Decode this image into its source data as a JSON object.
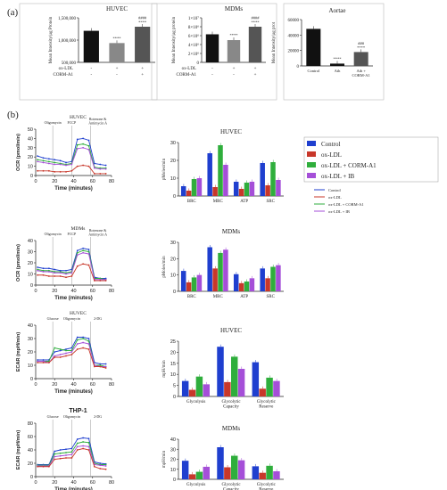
{
  "panel_labels": {
    "a": "(a)",
    "b": "(b)"
  },
  "legend_main": {
    "items": [
      {
        "label": "Control",
        "color": "#1f3fcf"
      },
      {
        "label": "ox-LDL",
        "color": "#c8372a"
      },
      {
        "label": "ox-LDL + CORM-A1",
        "color": "#2fae3c"
      },
      {
        "label": "ox-LDL + IB",
        "color": "#a54fd8"
      }
    ]
  },
  "legend_small": {
    "items": [
      {
        "label": "Control",
        "color": "#1f3fcf"
      },
      {
        "label": "ox-LDL",
        "color": "#c8372a"
      },
      {
        "label": "ox-LDL + CORM-A1",
        "color": "#2fae3c"
      },
      {
        "label": "ox-LDL + IB",
        "color": "#a54fd8"
      }
    ]
  },
  "chart_data": [
    {
      "id": "a1",
      "type": "bar",
      "title": "HUVEC",
      "ylabel": "Mean Intensity/µg Protein",
      "yticks": [
        "500,000",
        "1,000,000",
        "1,500,000"
      ],
      "ylim": [
        300000,
        1500000
      ],
      "values": [
        1150000,
        820000,
        1260000
      ],
      "colors": [
        "#111111",
        "#888888",
        "#555555"
      ],
      "sig": [
        "",
        "****",
        "####\n****"
      ],
      "rows": [
        {
          "label": "ox-LDL",
          "marks": [
            "-",
            "+",
            "+"
          ]
        },
        {
          "label": "CORM-A1",
          "marks": [
            "-",
            "-",
            "+"
          ]
        }
      ]
    },
    {
      "id": "a2",
      "type": "bar",
      "title": "MDMs",
      "ylabel": "Mean Intensity/µg protein",
      "yticks": [
        "0",
        "2×10⁶",
        "4×10⁶",
        "6×10⁶",
        "8×10⁶",
        "1×10⁷"
      ],
      "ylim": [
        0,
        10000000
      ],
      "values": [
        6300000,
        5000000,
        8000000
      ],
      "colors": [
        "#111111",
        "#888888",
        "#555555"
      ],
      "sig": [
        "",
        "****",
        "####\n****"
      ],
      "rows": [
        {
          "label": "ox-LDL",
          "marks": [
            "-",
            "+",
            "+"
          ]
        },
        {
          "label": "CORM-A1",
          "marks": [
            "-",
            "-",
            "+"
          ]
        }
      ]
    },
    {
      "id": "a3",
      "type": "bar",
      "title": "Aortae",
      "ylabel": "Mean Intensity/µg prot",
      "yticks": [
        "0",
        "20000",
        "40000",
        "60000"
      ],
      "ylim": [
        0,
        60000
      ],
      "categories": [
        "Control",
        "Ath",
        "Ath +\nCORM-A1"
      ],
      "values": [
        48000,
        3000,
        18000
      ],
      "colors": [
        "#111111",
        "#111111",
        "#555555"
      ],
      "sig": [
        "",
        "****",
        "###\n****"
      ]
    },
    {
      "id": "l1",
      "type": "line",
      "title": "HUVEC",
      "xlabel": "Time (minutes)",
      "ylabel": "OCR (pmol/min)",
      "xticks": [
        "0",
        "20",
        "40",
        "60",
        "80"
      ],
      "yticks": [
        "0",
        "10",
        "20",
        "30",
        "40",
        "50"
      ],
      "xlim": [
        0,
        80
      ],
      "ylim": [
        0,
        50
      ],
      "annotations": [
        "Oligomycin",
        "FCCP",
        "Rotenone &\nAntimycin A"
      ],
      "x": [
        2,
        8,
        14,
        20,
        26,
        32,
        38,
        44,
        50,
        56,
        62,
        68,
        74
      ],
      "series": [
        {
          "color": "#1f3fcf",
          "values": [
            21,
            19,
            18,
            17,
            16,
            14,
            15,
            39,
            40,
            38,
            13,
            12,
            11
          ]
        },
        {
          "color": "#2fae3c",
          "values": [
            17,
            16,
            15,
            14,
            13,
            12,
            13,
            33,
            34,
            32,
            9,
            8,
            8
          ]
        },
        {
          "color": "#a54fd8",
          "values": [
            15,
            14,
            13,
            12,
            12,
            11,
            12,
            29,
            30,
            28,
            8,
            7,
            7
          ]
        },
        {
          "color": "#c8372a",
          "values": [
            5,
            5,
            5,
            4,
            4,
            4,
            5,
            10,
            11,
            10,
            2,
            2,
            2
          ]
        }
      ]
    },
    {
      "id": "l2",
      "type": "line",
      "title": "MDMs",
      "xlabel": "Time (minutes)",
      "ylabel": "OCR (pmol/min)",
      "xticks": [
        "0",
        "20",
        "40",
        "60",
        "80"
      ],
      "yticks": [
        "0",
        "10",
        "20",
        "30",
        "40"
      ],
      "xlim": [
        0,
        80
      ],
      "ylim": [
        0,
        40
      ],
      "annotations": [
        "Oligomycin",
        "FCCP",
        "Rotenone &\nAntimycin A"
      ],
      "x": [
        2,
        8,
        14,
        20,
        26,
        32,
        38,
        44,
        50,
        56,
        62,
        68,
        74
      ],
      "series": [
        {
          "color": "#1f3fcf",
          "values": [
            16,
            15,
            15,
            14,
            13,
            13,
            14,
            31,
            33,
            32,
            7,
            6,
            6
          ]
        },
        {
          "color": "#2fae3c",
          "values": [
            14,
            13,
            13,
            12,
            12,
            11,
            12,
            29,
            31,
            30,
            6,
            6,
            5
          ]
        },
        {
          "color": "#a54fd8",
          "values": [
            13,
            12,
            12,
            11,
            11,
            10,
            11,
            27,
            29,
            28,
            5,
            5,
            5
          ]
        },
        {
          "color": "#c8372a",
          "values": [
            9,
            9,
            8,
            8,
            8,
            7,
            8,
            17,
            19,
            18,
            4,
            4,
            4
          ]
        }
      ]
    },
    {
      "id": "l3",
      "type": "line",
      "title": "HUVEC",
      "xlabel": "Time (minutes)",
      "ylabel": "ECAR (mpH/min)",
      "xticks": [
        "0",
        "20",
        "40",
        "60",
        "80"
      ],
      "yticks": [
        "0",
        "10",
        "20",
        "30",
        "40"
      ],
      "xlim": [
        0,
        80
      ],
      "ylim": [
        0,
        40
      ],
      "annotations": [
        "Glucose",
        "Oligomycin",
        "2-DG"
      ],
      "x": [
        2,
        8,
        14,
        20,
        26,
        32,
        38,
        44,
        50,
        56,
        62,
        68,
        74
      ],
      "series": [
        {
          "color": "#1f3fcf",
          "values": [
            14,
            14,
            14,
            20,
            21,
            22,
            23,
            31,
            31,
            30,
            12,
            11,
            11
          ]
        },
        {
          "color": "#2fae3c",
          "values": [
            13,
            13,
            13,
            23,
            22,
            21,
            21,
            29,
            30,
            28,
            10,
            10,
            9
          ]
        },
        {
          "color": "#a54fd8",
          "values": [
            13,
            13,
            12,
            17,
            18,
            19,
            20,
            26,
            27,
            26,
            10,
            9,
            9
          ]
        },
        {
          "color": "#c8372a",
          "values": [
            12,
            12,
            12,
            16,
            16,
            17,
            18,
            22,
            23,
            22,
            9,
            9,
            8
          ]
        }
      ]
    },
    {
      "id": "l4",
      "type": "line",
      "title": "THP-1",
      "xlabel": "Time (minutes)",
      "ylabel": "ECAR (mpH/min)",
      "xticks": [
        "0",
        "20",
        "40",
        "60",
        "80"
      ],
      "yticks": [
        "0",
        "20",
        "40",
        "60",
        "80"
      ],
      "xlim": [
        0,
        80
      ],
      "ylim": [
        0,
        80
      ],
      "annotations": [
        "Glucose",
        "Oligomycin",
        "2-DG"
      ],
      "x": [
        2,
        8,
        14,
        20,
        26,
        32,
        38,
        44,
        50,
        56,
        62,
        68,
        74
      ],
      "series": [
        {
          "color": "#1f3fcf",
          "values": [
            18,
            18,
            18,
            38,
            40,
            41,
            42,
            56,
            58,
            57,
            22,
            20,
            19
          ]
        },
        {
          "color": "#2fae3c",
          "values": [
            17,
            17,
            17,
            34,
            35,
            36,
            37,
            50,
            52,
            51,
            20,
            18,
            18
          ]
        },
        {
          "color": "#a54fd8",
          "values": [
            16,
            16,
            16,
            30,
            31,
            32,
            33,
            45,
            46,
            45,
            18,
            17,
            16
          ]
        },
        {
          "color": "#c8372a",
          "values": [
            15,
            15,
            15,
            26,
            27,
            28,
            28,
            40,
            42,
            40,
            15,
            12,
            11
          ]
        }
      ]
    },
    {
      "id": "g1",
      "type": "bar",
      "title": "HUVEC",
      "ylabel": "pMoles/min",
      "categories": [
        "BRC",
        "MRC",
        "ATP",
        "SRC"
      ],
      "yticks": [
        "0",
        "10",
        "20",
        "30"
      ],
      "ylim": [
        0,
        30
      ],
      "series": [
        {
          "name": "Control",
          "color": "#1f3fcf",
          "values": [
            5.5,
            24,
            8,
            18.5
          ]
        },
        {
          "name": "ox-LDL",
          "color": "#c8372a",
          "values": [
            3,
            5,
            4,
            6
          ]
        },
        {
          "name": "ox-LDL + CORM-A1",
          "color": "#2fae3c",
          "values": [
            9.5,
            28.5,
            7.5,
            19
          ]
        },
        {
          "name": "ox-LDL + IB",
          "color": "#a54fd8",
          "values": [
            10,
            17.5,
            8,
            9
          ]
        }
      ]
    },
    {
      "id": "g2",
      "type": "bar",
      "title": "MDMs",
      "ylabel": "pMoles/min",
      "categories": [
        "BRC",
        "MRC",
        "ATP",
        "SRC"
      ],
      "yticks": [
        "0",
        "10",
        "20",
        "30"
      ],
      "ylim": [
        0,
        30
      ],
      "series": [
        {
          "name": "Control",
          "color": "#1f3fcf",
          "values": [
            12.5,
            27,
            10.5,
            14
          ]
        },
        {
          "name": "ox-LDL",
          "color": "#c8372a",
          "values": [
            5.5,
            14,
            5,
            8
          ]
        },
        {
          "name": "ox-LDL + CORM-A1",
          "color": "#2fae3c",
          "values": [
            8.5,
            23.5,
            6,
            15
          ]
        },
        {
          "name": "ox-LDL + IB",
          "color": "#a54fd8",
          "values": [
            10,
            25.5,
            8,
            16
          ]
        }
      ]
    },
    {
      "id": "g3",
      "type": "bar",
      "title": "HUVEC",
      "ylabel": "mpH/min",
      "categories": [
        "Glycolysis",
        "Glycolytic\nCapacity",
        "Glycolytic\nReserve"
      ],
      "yticks": [
        "0",
        "5",
        "10",
        "15",
        "20",
        "25"
      ],
      "ylim": [
        0,
        25
      ],
      "series": [
        {
          "name": "Control",
          "color": "#1f3fcf",
          "values": [
            7,
            22.5,
            15.5
          ]
        },
        {
          "name": "ox-LDL",
          "color": "#c8372a",
          "values": [
            3,
            6.5,
            3.5
          ]
        },
        {
          "name": "ox-LDL + CORM-A1",
          "color": "#2fae3c",
          "values": [
            9,
            18,
            8.5
          ]
        },
        {
          "name": "ox-LDL + IB",
          "color": "#a54fd8",
          "values": [
            5.5,
            12.5,
            7
          ]
        }
      ]
    },
    {
      "id": "g4",
      "type": "bar",
      "title": "MDMs",
      "ylabel": "mpH/min",
      "categories": [
        "Glycolysis",
        "Glycolytic\nCapacity",
        "Glycolytic\nReserve"
      ],
      "yticks": [
        "0",
        "10",
        "20",
        "30",
        "40"
      ],
      "ylim": [
        0,
        40
      ],
      "series": [
        {
          "name": "Control",
          "color": "#1f3fcf",
          "values": [
            18.5,
            32,
            13
          ]
        },
        {
          "name": "ox-LDL",
          "color": "#c8372a",
          "values": [
            5,
            12,
            6.5
          ]
        },
        {
          "name": "ox-LDL + CORM-A1",
          "color": "#2fae3c",
          "values": [
            7.5,
            23.5,
            13.5
          ]
        },
        {
          "name": "ox-LDL + IB",
          "color": "#a54fd8",
          "values": [
            12.5,
            19,
            8
          ]
        }
      ]
    }
  ]
}
